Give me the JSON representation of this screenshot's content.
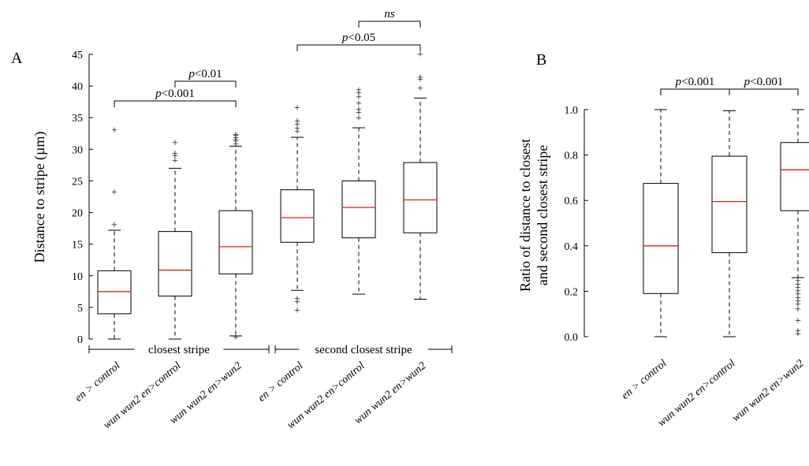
{
  "chart_data": [
    {
      "panel_label": "A",
      "type": "box",
      "ylabel": "Distance to stripe (µm)",
      "ylim": [
        0,
        45
      ],
      "yticks": [
        0,
        5,
        10,
        15,
        20,
        25,
        30,
        35,
        40,
        45
      ],
      "categories": [
        "en > control",
        "wun wun2 en>control",
        "wun wun2 en>wun2",
        "en > control",
        "wun wun2 en>control",
        "wun wun2 en>wun2"
      ],
      "groups": [
        {
          "label": "closest stripe",
          "members": [
            0,
            1,
            2
          ]
        },
        {
          "label": "second closest stripe",
          "members": [
            3,
            4,
            5
          ]
        }
      ],
      "boxes": [
        {
          "whisker_low": 0,
          "q1": 4,
          "median": 7.5,
          "q3": 10.8,
          "whisker_high": 17.2,
          "outliers": [
            18,
            23.2,
            33
          ]
        },
        {
          "whisker_low": 0,
          "q1": 6.8,
          "median": 10.9,
          "q3": 17,
          "whisker_high": 27,
          "outliers": [
            28.2,
            28.9,
            29.3,
            31
          ]
        },
        {
          "whisker_low": 0.5,
          "q1": 10.3,
          "median": 14.6,
          "q3": 20.3,
          "whisker_high": 30.5,
          "outliers": [
            0.2,
            30.8,
            31.2,
            31.5,
            31.8,
            32.1,
            32.3
          ]
        },
        {
          "whisker_low": 7.7,
          "q1": 15.3,
          "median": 19.2,
          "q3": 23.6,
          "whisker_high": 31.9,
          "outliers": [
            4.5,
            5.8,
            6.3,
            32.8,
            33.3,
            33.9,
            34.4,
            36.5
          ]
        },
        {
          "whisker_low": 7.1,
          "q1": 16,
          "median": 20.8,
          "q3": 25,
          "whisker_high": 33.4,
          "outliers": [
            34.9,
            35.8,
            36.3,
            37.2,
            38.2,
            38.8,
            39.3
          ]
        },
        {
          "whisker_low": 6.3,
          "q1": 16.8,
          "median": 22,
          "q3": 27.9,
          "whisker_high": 38.1,
          "outliers": [
            39.6,
            41,
            41.3,
            45
          ]
        }
      ],
      "significance": [
        {
          "from": 0,
          "to": 2,
          "label": "p<0.001"
        },
        {
          "from": 1,
          "to": 2,
          "label": "p<0.01"
        },
        {
          "from": 3,
          "to": 5,
          "label": "p<0.05"
        },
        {
          "from": 4,
          "to": 5,
          "label": "ns"
        }
      ]
    },
    {
      "panel_label": "B",
      "type": "box",
      "ylabel": [
        "Ratio of distance to closest",
        "and second closest stripe"
      ],
      "ylim": [
        0,
        1
      ],
      "yticks": [
        "0.0",
        "0.2",
        "0.4",
        "0.6",
        "0.8",
        "1.0"
      ],
      "categories": [
        "en > control",
        "wun wun2 en>control",
        "wun wun2 en>wun2"
      ],
      "boxes": [
        {
          "whisker_low": 0,
          "q1": 0.19,
          "median": 0.4,
          "q3": 0.675,
          "whisker_high": 1,
          "outliers": []
        },
        {
          "whisker_low": 0,
          "q1": 0.37,
          "median": 0.595,
          "q3": 0.795,
          "whisker_high": 0.995,
          "outliers": []
        },
        {
          "whisker_low": 0.26,
          "q1": 0.555,
          "median": 0.735,
          "q3": 0.855,
          "whisker_high": 1,
          "outliers": [
            0.01,
            0.025,
            0.07,
            0.12,
            0.14,
            0.155,
            0.17,
            0.185,
            0.2,
            0.215,
            0.23,
            0.245
          ]
        }
      ],
      "significance": [
        {
          "from": 0,
          "to": 1,
          "label": "p<0.001"
        },
        {
          "from": 1,
          "to": 2,
          "label": "p<0.001"
        }
      ]
    }
  ]
}
